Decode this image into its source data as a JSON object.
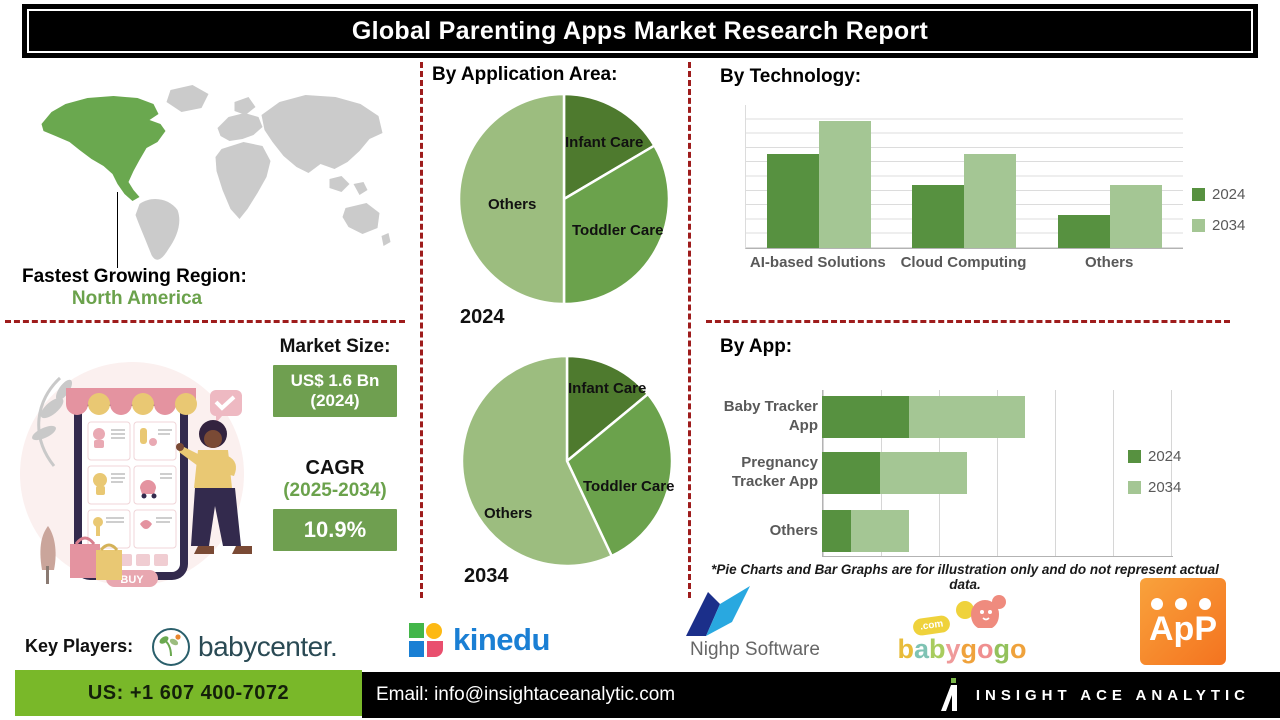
{
  "title": "Global Parenting Apps Market Research Report",
  "region": {
    "heading": "Fastest Growing Region:",
    "value": "North America"
  },
  "market": {
    "heading": "Market Size:",
    "size_line1": "US$ 1.6 Bn",
    "size_line2": "(2024)",
    "cagr_label": "CAGR",
    "cagr_period": "(2025-2034)",
    "cagr_value": "10.9%"
  },
  "sections": {
    "application": {
      "heading": "By Application Area:"
    },
    "technology": {
      "heading": "By  Technology:"
    },
    "by_app": {
      "heading": "By App:"
    }
  },
  "chart_data": [
    {
      "type": "pie",
      "year": "2024",
      "title": "By Application Area - 2024",
      "labels": [
        "Infant Care",
        "Toddler Care",
        "Others"
      ],
      "values": [
        16.5,
        33.5,
        50
      ],
      "colors": [
        "#4e7a2e",
        "#6ba24c",
        "#9cbd7f"
      ],
      "legend_position": "none"
    },
    {
      "type": "pie",
      "year": "2034",
      "title": "By Application Area - 2034",
      "labels": [
        "Infant Care",
        "Toddler Care",
        "Others"
      ],
      "values": [
        14,
        29,
        57
      ],
      "colors": [
        "#4e7a2e",
        "#6ba24c",
        "#9cbd7f"
      ],
      "legend_position": "none"
    },
    {
      "type": "bar",
      "title": "By Technology",
      "categories": [
        "AI-based Solutions",
        "Cloud Computing",
        "Others"
      ],
      "series": [
        {
          "name": "2024",
          "values": [
            6.6,
            4.4,
            2.3
          ],
          "color": "#579140"
        },
        {
          "name": "2034",
          "values": [
            8.9,
            6.6,
            4.4
          ],
          "color": "#a4c694"
        }
      ],
      "ylim": [
        0,
        10
      ],
      "grid": true,
      "legend_position": "right"
    },
    {
      "type": "bar-horizontal-stacked",
      "title": "By App",
      "categories": [
        "Baby Tracker App",
        "Pregnancy Tracker App",
        "Others"
      ],
      "series": [
        {
          "name": "2024",
          "values": [
            1.5,
            1.0,
            0.5
          ],
          "color": "#579140"
        },
        {
          "name": "2034",
          "values": [
            2.0,
            1.5,
            1.0
          ],
          "color": "#a4c694"
        }
      ],
      "xlim": [
        0,
        6
      ],
      "grid": true,
      "legend_position": "right"
    }
  ],
  "disclaimer": "*Pie Charts and Bar Graphs are for illustration only and do not represent actual data.",
  "illustration": {
    "buy_label": "BUY"
  },
  "key_players": {
    "heading": "Key Players:",
    "babycenter": "babycenter.",
    "kinedu": "kinedu",
    "nighp": "Nighp Software",
    "babygogo_text": "babygogo",
    "babygogo_letter_colors": [
      "#e8bc3a",
      "#7fc3b4",
      "#a8cc5e",
      "#ef9a9a",
      "#efa23c",
      "#ef8f8f",
      "#93c15c",
      "#efa23c"
    ],
    "babygogo_com": ".com",
    "app_text": "ApP"
  },
  "footer": {
    "phone": "US: +1 607 400-7072",
    "email": "Email: info@insightaceanalytic.com",
    "brand": "INSIGHT ACE ANALYTIC"
  },
  "colors": {
    "green_dark": "#4e7a2e",
    "green_mid": "#6ba24c",
    "green_light": "#9cbd7f",
    "green_box": "#6f9f50",
    "green_footer": "#79b829",
    "red_dash": "#9e1c1c",
    "gray_text": "#595959",
    "land_gray": "#cbcbcb"
  }
}
